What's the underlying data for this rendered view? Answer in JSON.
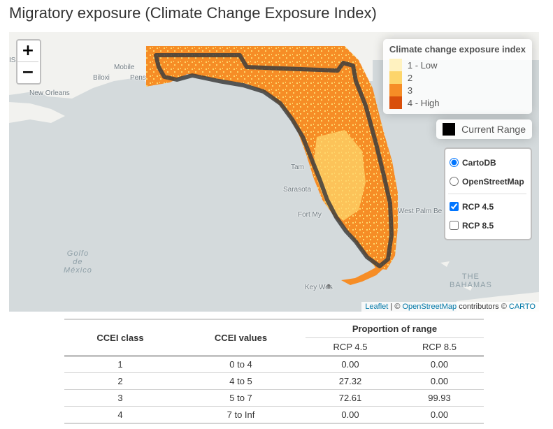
{
  "title": "Migratory exposure (Climate Change Exposure Index)",
  "map": {
    "zoom_in": "+",
    "zoom_out": "−",
    "place_labels": {
      "mobile": "Mobile",
      "biloxi": "Biloxi",
      "pensacola": "Pens",
      "new_orleans": "New Orleans",
      "tampa": "Tam",
      "sarasota": "Sarasota",
      "fort_myers": "Fort My",
      "west_palm_beach": "West Palm Be",
      "key_west": "Key Wes",
      "bahamas_1": "THE",
      "bahamas_2": "BAHAMAS",
      "gulf_1": "Golfo",
      "gulf_2": "de",
      "gulf_3": "México",
      "left_edge": "IS"
    },
    "legend": {
      "title": "Climate change exposure index",
      "items": [
        {
          "label": "1 - Low",
          "color": "#fff2c0"
        },
        {
          "label": "2",
          "color": "#fdd56b"
        },
        {
          "label": "3",
          "color": "#f68d26"
        },
        {
          "label": "4 - High",
          "color": "#d94f0b"
        }
      ]
    },
    "current_range": {
      "label": "Current Range",
      "color": "#000000"
    },
    "layers": {
      "base": [
        {
          "label": "CartoDB",
          "checked": true
        },
        {
          "label": "OpenStreetMap",
          "checked": false
        }
      ],
      "overlays": [
        {
          "label": "RCP 4.5",
          "checked": true
        },
        {
          "label": "RCP 8.5",
          "checked": false
        }
      ]
    },
    "attribution": {
      "leaflet": "Leaflet",
      "sep": " | © ",
      "osm": "OpenStreetMap",
      "mid": " contributors © ",
      "carto": "CARTO"
    }
  },
  "table": {
    "headers": {
      "class": "CCEI class",
      "values": "CCEI values",
      "proportion": "Proportion of range",
      "rcp45": "RCP 4.5",
      "rcp85": "RCP 8.5"
    },
    "rows": [
      {
        "class": "1",
        "values": "0 to 4",
        "rcp45": "0.00",
        "rcp85": "0.00"
      },
      {
        "class": "2",
        "values": "4 to 5",
        "rcp45": "27.32",
        "rcp85": "0.00"
      },
      {
        "class": "3",
        "values": "5 to 7",
        "rcp45": "72.61",
        "rcp85": "99.93"
      },
      {
        "class": "4",
        "values": "7 to Inf",
        "rcp45": "0.00",
        "rcp85": "0.00"
      }
    ]
  }
}
